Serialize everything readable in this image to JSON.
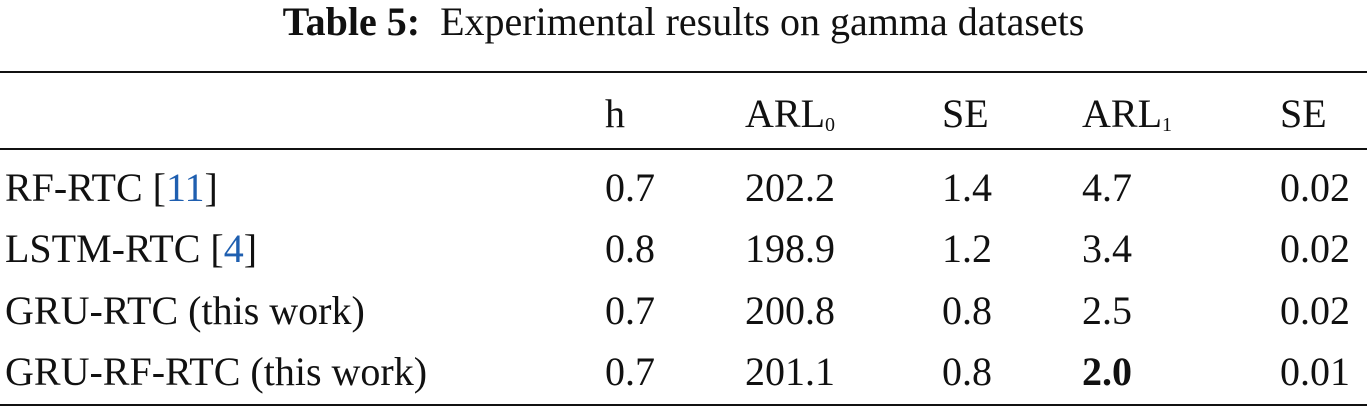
{
  "caption": {
    "label": "Table 5:",
    "text": "Experimental results on gamma datasets"
  },
  "table": {
    "header": [
      {
        "text": ""
      },
      {
        "text": "h"
      },
      {
        "text": "ARL",
        "sub": "0"
      },
      {
        "text": "SE"
      },
      {
        "text": "ARL",
        "sub": "1"
      },
      {
        "text": "SE"
      }
    ],
    "rows": [
      [
        {
          "parts": [
            "RF-RTC [",
            "11",
            "]"
          ]
        },
        "0.7",
        "202.2",
        "1.4",
        "4.7",
        "0.02"
      ],
      [
        {
          "parts": [
            "LSTM-RTC [",
            "4",
            "]"
          ]
        },
        "0.8",
        "198.9",
        "1.2",
        "3.4",
        "0.02"
      ],
      [
        {
          "parts": [
            "GRU-RTC (this work)"
          ]
        },
        "0.7",
        "200.8",
        "0.8",
        "2.5",
        "0.02"
      ],
      [
        {
          "parts": [
            "GRU-RF-RTC (this work)"
          ]
        },
        "0.7",
        "201.1",
        "0.8",
        "2.0",
        "0.01"
      ]
    ],
    "bold_cells": [
      [
        3,
        4
      ]
    ]
  }
}
